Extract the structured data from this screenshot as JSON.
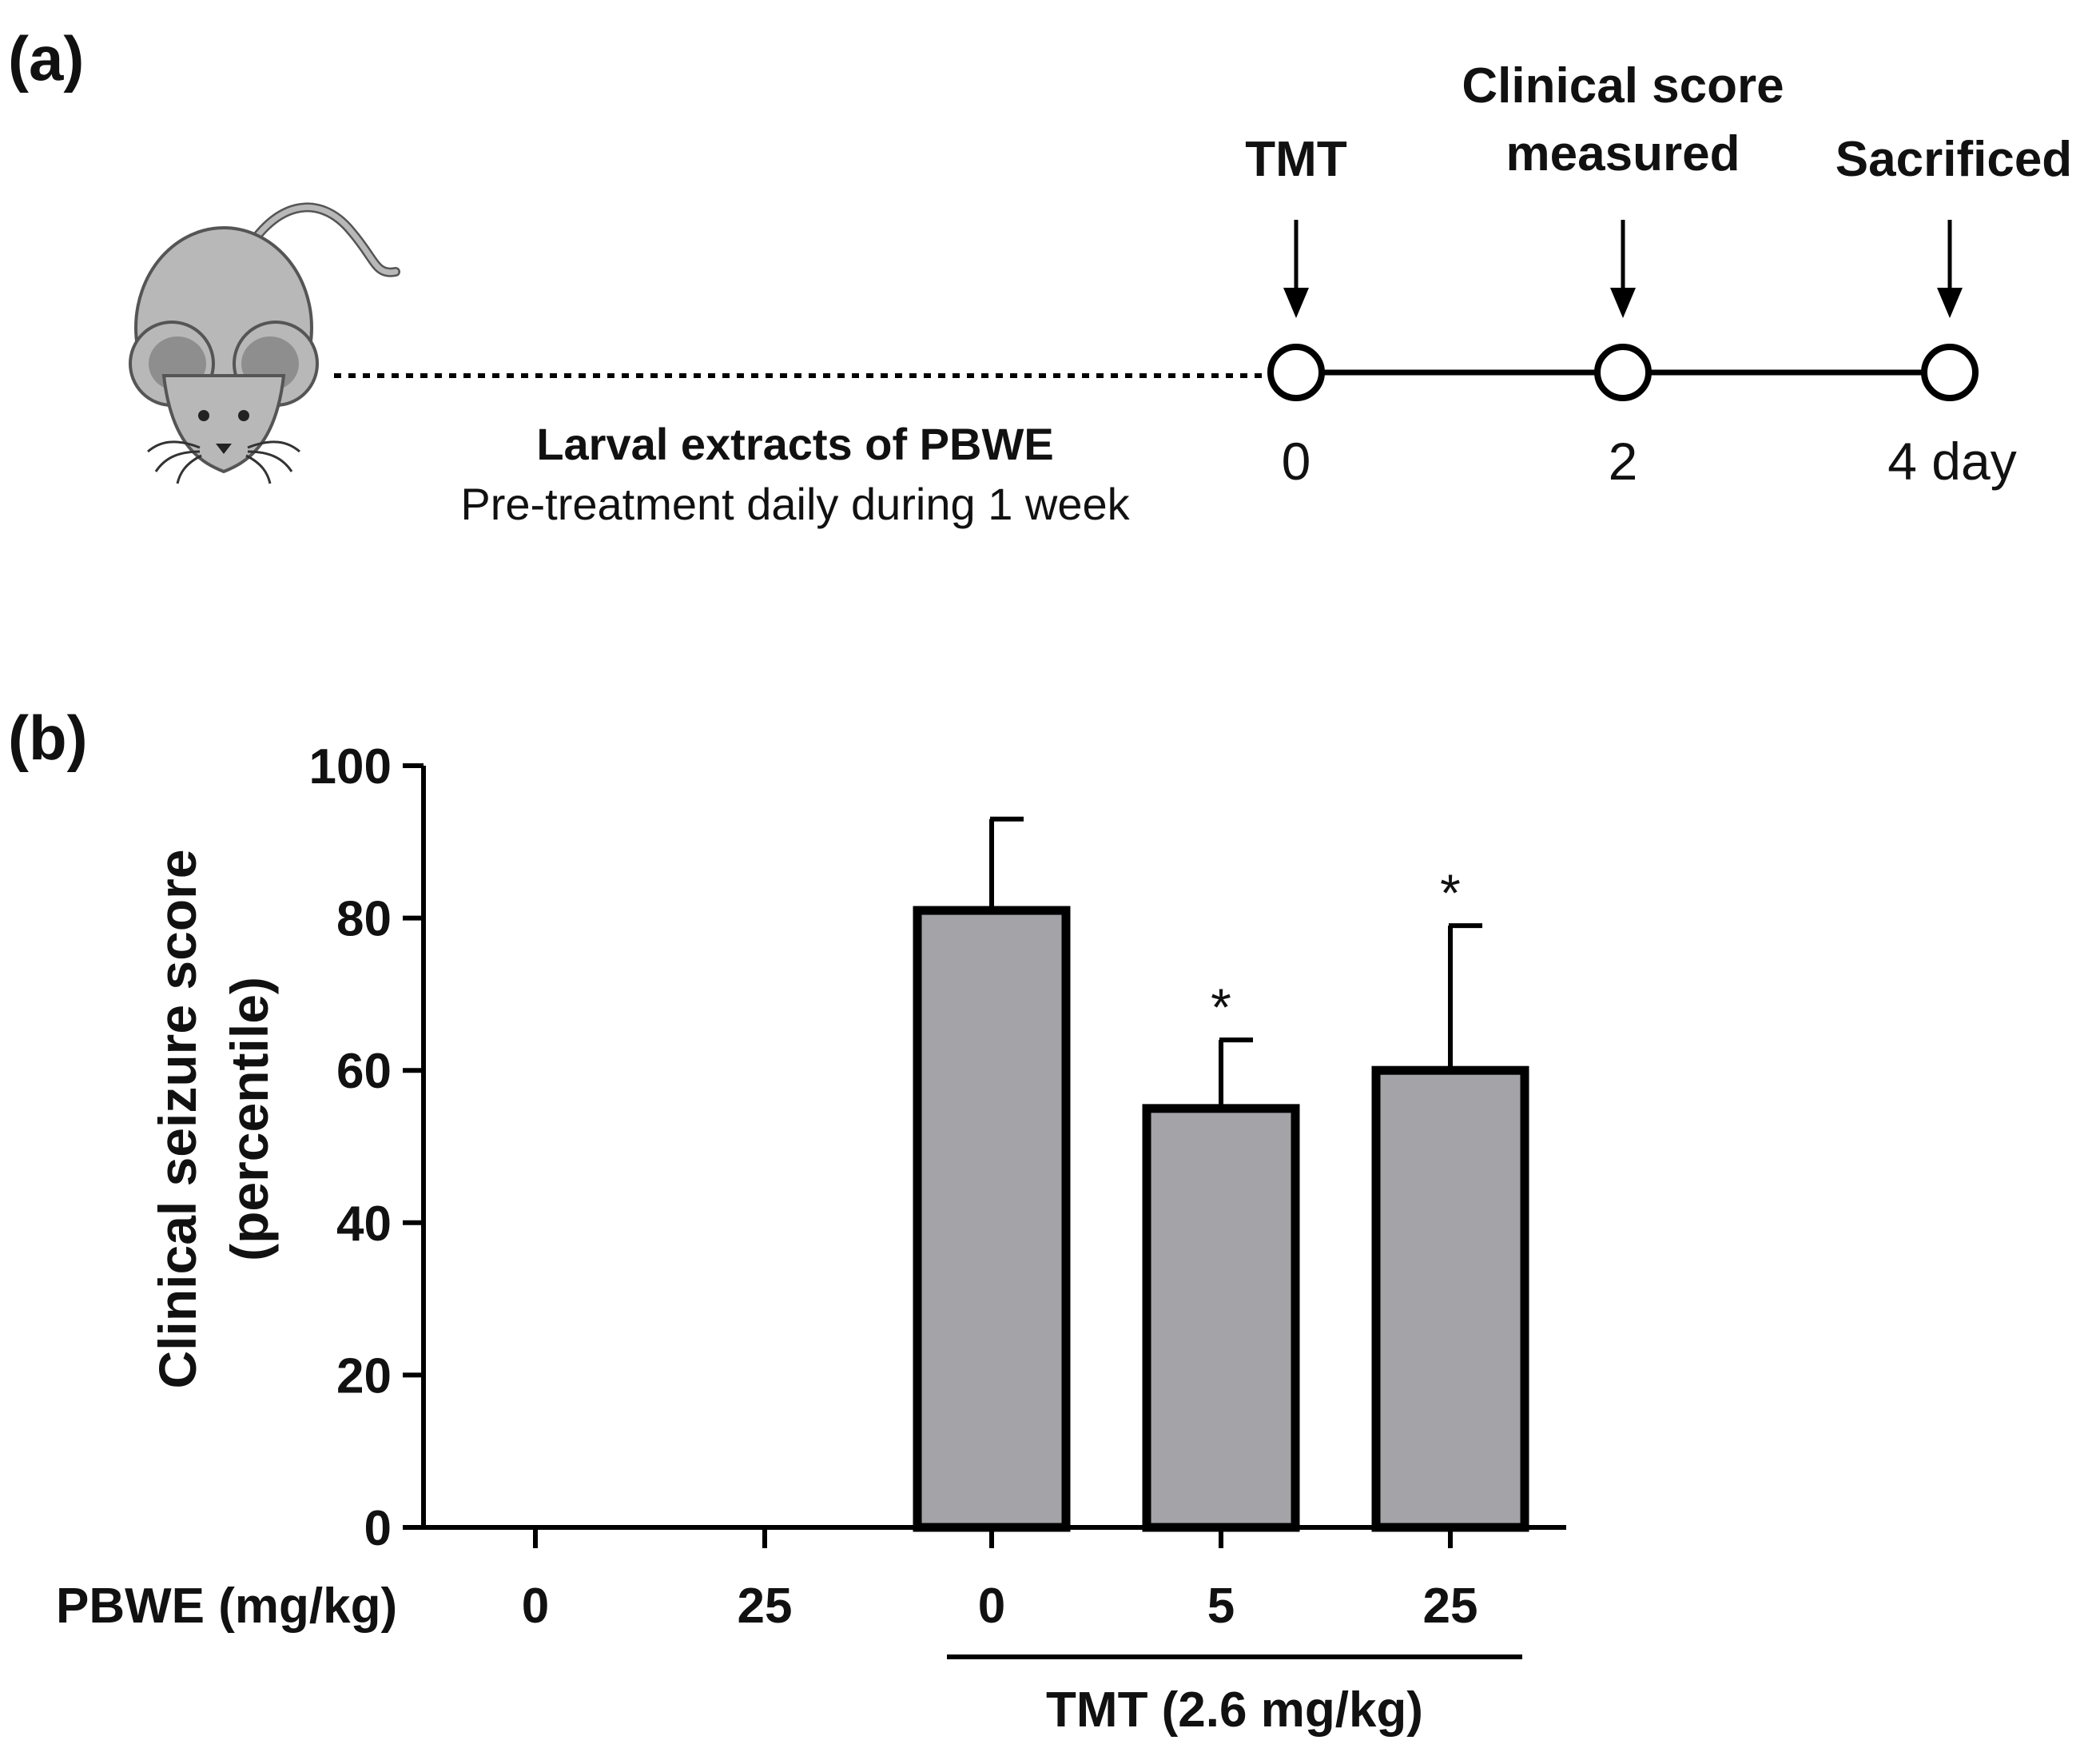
{
  "panel_a": {
    "label": "(a)",
    "events": [
      {
        "name": "TMT"
      },
      {
        "name": "Clinical score",
        "name2": "measured"
      },
      {
        "name": "Sacrificed"
      }
    ],
    "timepoints": [
      "0",
      "2",
      "4 day"
    ],
    "pretreatment_title": "Larval extracts of PBWE",
    "pretreatment_desc": "Pre-treatment daily during 1 week"
  },
  "panel_b": {
    "label": "(b)",
    "x_row_label": "PBWE (mg/kg)",
    "group_label": "TMT (2.6 mg/kg)"
  },
  "chart_data": {
    "type": "bar",
    "categories": [
      "0",
      "25",
      "0",
      "5",
      "25"
    ],
    "values": [
      0,
      0,
      81,
      55,
      60
    ],
    "errors": [
      0,
      0,
      12,
      9,
      19
    ],
    "significance": [
      "",
      "",
      "",
      "*",
      "*"
    ],
    "ylabel": "Clinical seizure score",
    "ylabel2": "(percentile)",
    "ylim": [
      0,
      100
    ],
    "yticks": [
      0,
      20,
      40,
      60,
      80,
      100
    ],
    "colors": {
      "bar": "#a3a3a8",
      "stroke": "#000000"
    }
  }
}
